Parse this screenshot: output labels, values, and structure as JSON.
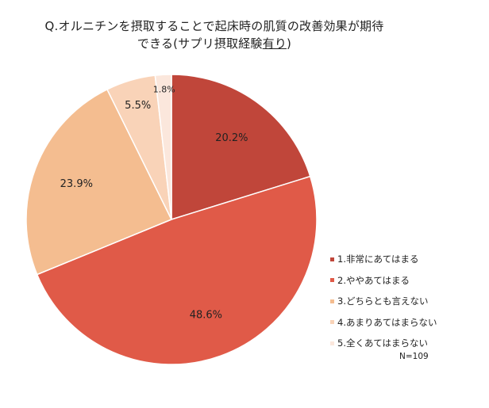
{
  "chart_data": {
    "type": "pie",
    "title_lines": [
      [
        "Q.オルニチンを摂取することで起床時の肌質の改善効果が期待",
        ""
      ],
      [
        "できる(サプリ摂取経験",
        "有り",
        ")"
      ]
    ],
    "categories": [
      "1.非常にあてはまる",
      "2.ややあてはまる",
      "3.どちらとも言えない",
      "4.あまりあてはまらない",
      "5.全くあてはまらない"
    ],
    "values": [
      20.2,
      48.6,
      23.9,
      5.5,
      1.8
    ],
    "labels": [
      "20.2%",
      "48.6%",
      "23.9%",
      "5.5%",
      "1.8%"
    ],
    "colors": [
      "#c0463a",
      "#e05a48",
      "#f4bd90",
      "#f9d3b8",
      "#fbe7dc"
    ],
    "start_angle_deg": 0,
    "direction": "clockwise",
    "legend_position": "right",
    "sample_size": "N=109"
  }
}
